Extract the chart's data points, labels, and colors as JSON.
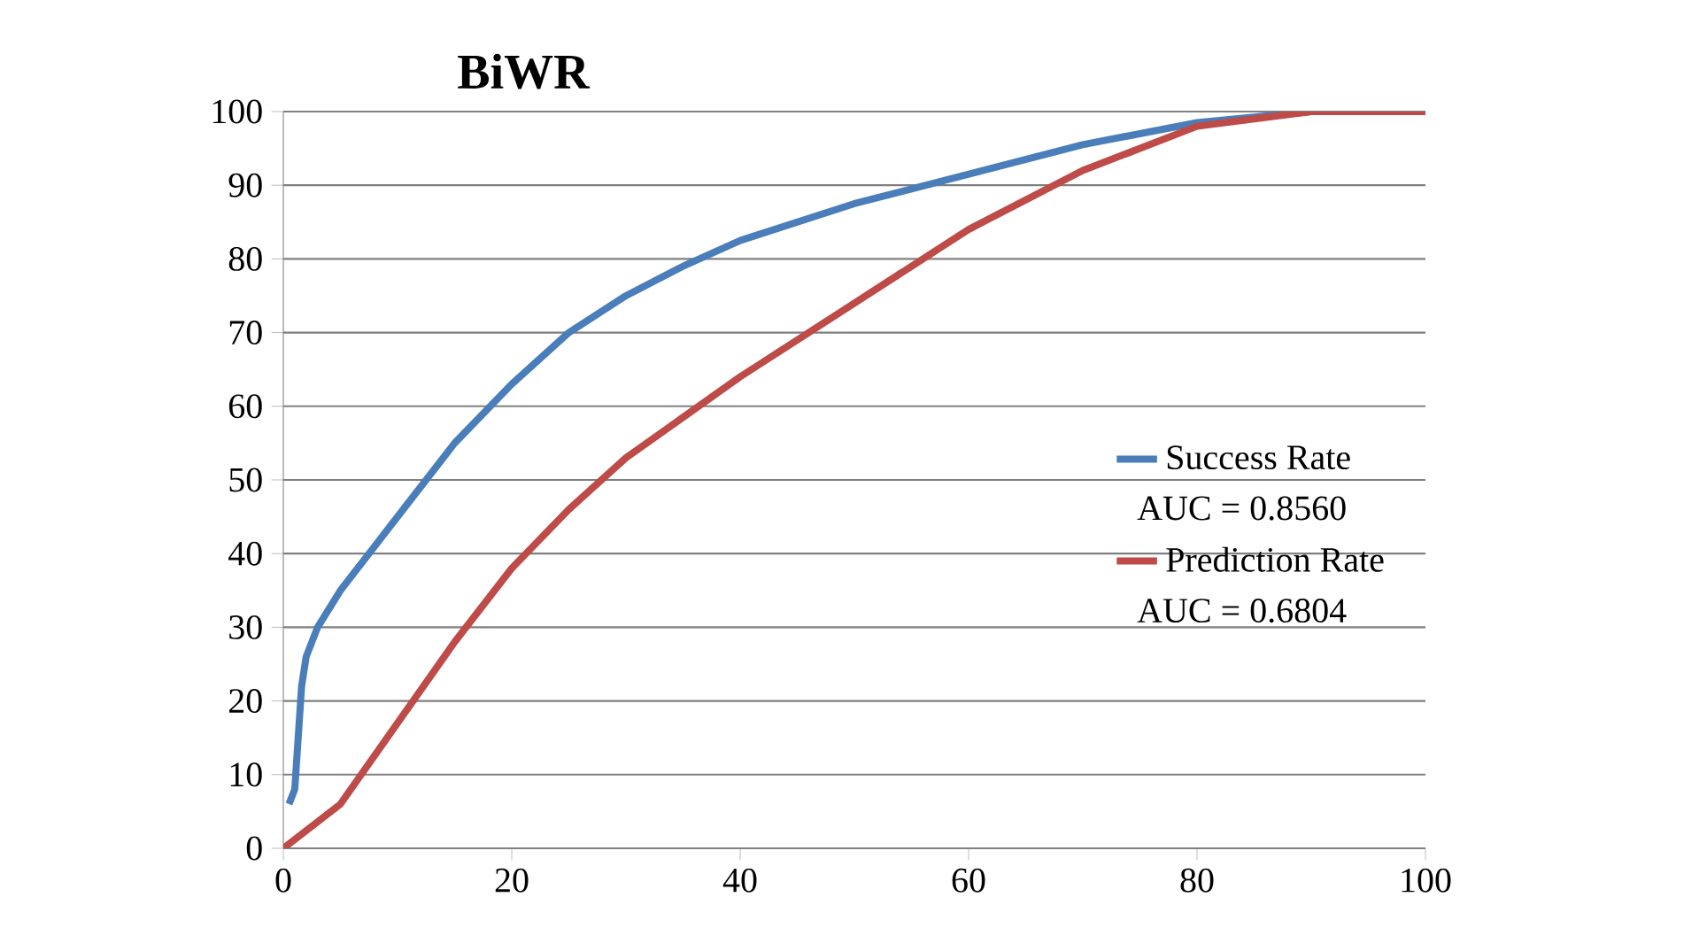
{
  "chart_data": {
    "type": "line",
    "title": "BiWR",
    "xlim": [
      0,
      100
    ],
    "ylim": [
      0,
      100
    ],
    "xticks": [
      0,
      20,
      40,
      60,
      80,
      100
    ],
    "yticks": [
      0,
      10,
      20,
      30,
      40,
      50,
      60,
      70,
      80,
      90,
      100
    ],
    "grid": "y",
    "legend": "right",
    "marker": "none",
    "line_style": "solid",
    "annotations": [
      "AUC = 0.8560",
      "AUC = 0.6804"
    ],
    "series": [
      {
        "name": "Success Rate",
        "color": "#4a7ebb",
        "x": [
          0.5,
          1,
          1.3,
          1.6,
          2,
          3,
          5,
          8,
          10,
          15,
          20,
          25,
          30,
          35,
          40,
          50,
          60,
          70,
          80,
          90,
          100
        ],
        "values": [
          6,
          8,
          15,
          22,
          26,
          30,
          35,
          41,
          45,
          55,
          63,
          70,
          75,
          79,
          82.5,
          87.5,
          91.5,
          95.5,
          98.5,
          100,
          100
        ]
      },
      {
        "name": "Prediction Rate",
        "color": "#be4b48",
        "x": [
          0,
          5,
          10,
          15,
          20,
          25,
          30,
          40,
          50,
          60,
          70,
          80,
          90,
          100
        ],
        "values": [
          0,
          6,
          17,
          28,
          38,
          46,
          53,
          64,
          74,
          84,
          92,
          98,
          100,
          100
        ]
      }
    ]
  }
}
